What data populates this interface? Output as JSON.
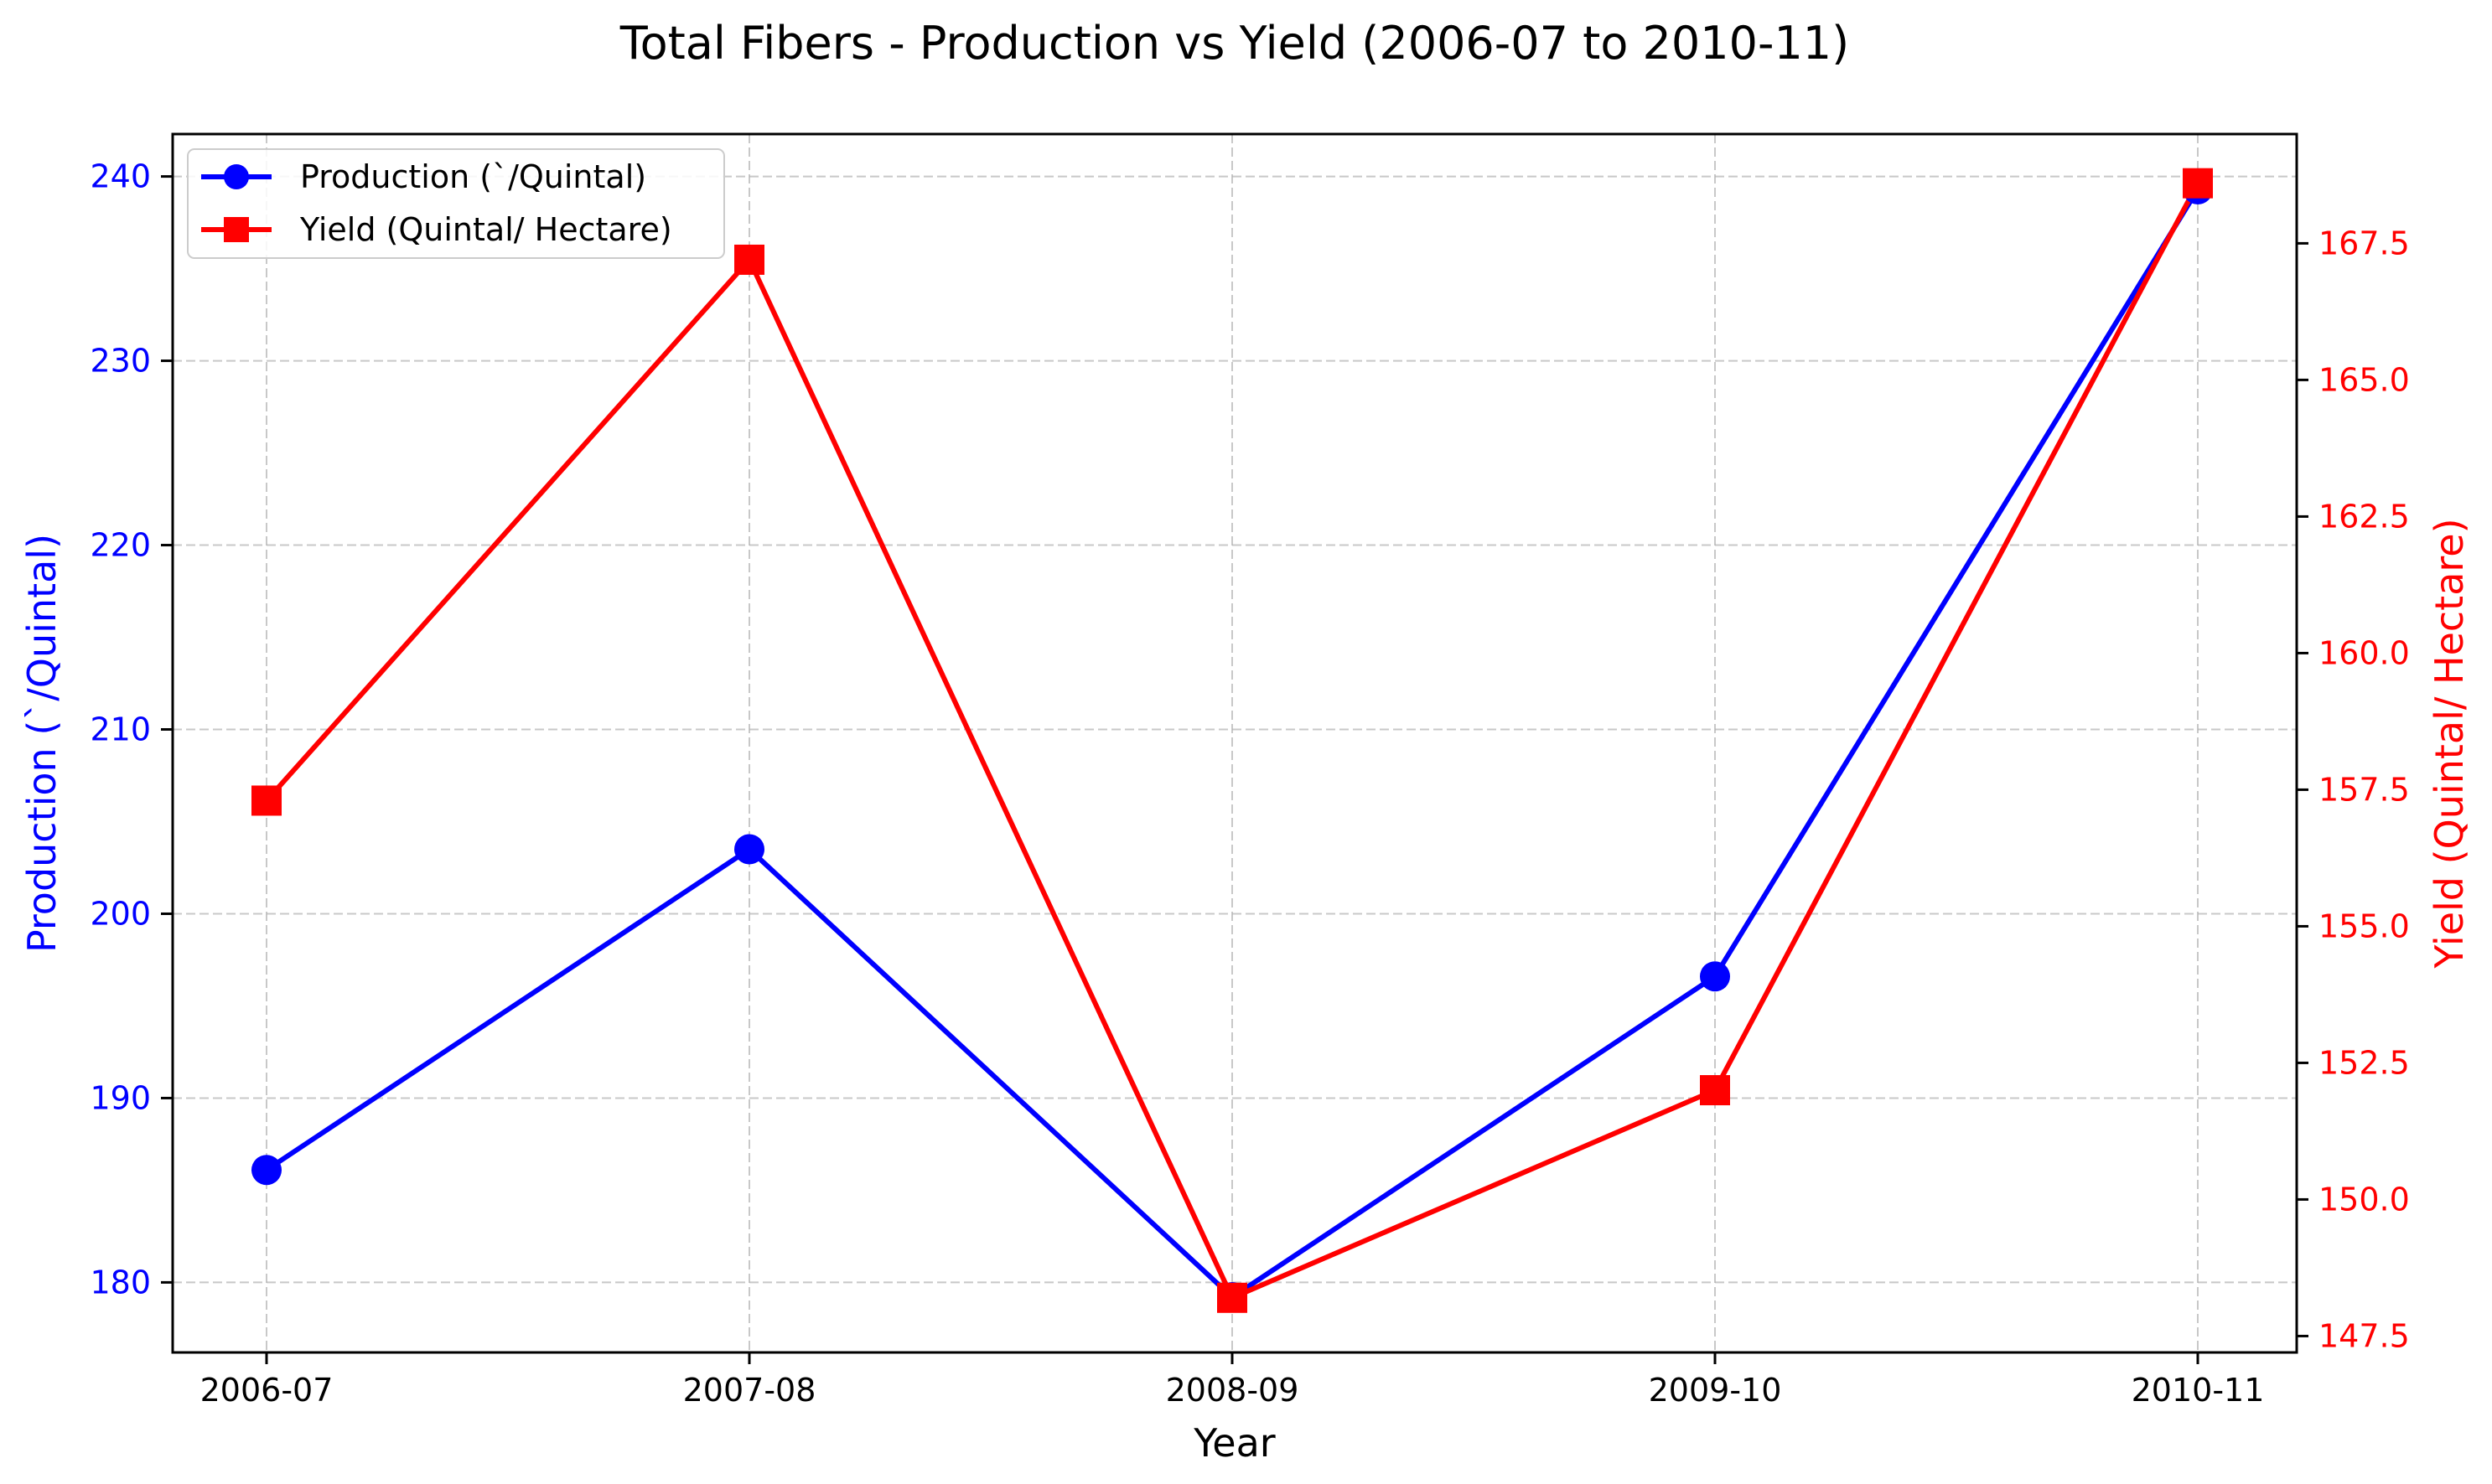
{
  "chart_data": {
    "type": "line",
    "title": "Total Fibers - Production vs Yield (2006-07 to 2010-11)",
    "xlabel": "Year",
    "categories": [
      "2006-07",
      "2007-08",
      "2008-09",
      "2009-10",
      "2010-11"
    ],
    "y_left": {
      "label": "Production (`/Quintal)",
      "range": [
        176.2,
        242.3
      ],
      "ticks": [
        180,
        190,
        200,
        210,
        220,
        230,
        240
      ],
      "tick_labels": [
        "180",
        "190",
        "200",
        "210",
        "220",
        "230",
        "240"
      ],
      "color": "#0000ff"
    },
    "y_right": {
      "label": "Yield (Quintal/ Hectare)",
      "range": [
        147.2,
        169.5
      ],
      "ticks": [
        147.5,
        150.0,
        152.5,
        155.0,
        157.5,
        160.0,
        162.5,
        165.0,
        167.5
      ],
      "tick_labels": [
        "147.5",
        "150.0",
        "152.5",
        "155.0",
        "157.5",
        "160.0",
        "162.5",
        "165.0",
        "167.5"
      ],
      "color": "#ff0000"
    },
    "series": [
      {
        "name": "Production (`/Quintal)",
        "axis": "left",
        "marker": "circle",
        "color": "#0000ff",
        "values": [
          186.1,
          203.5,
          179.2,
          196.6,
          239.3
        ]
      },
      {
        "name": "Yield (Quintal/ Hectare)",
        "axis": "right",
        "marker": "square",
        "color": "#ff0000",
        "values": [
          157.3,
          167.2,
          148.2,
          152.0,
          168.6
        ]
      }
    ],
    "grid": true,
    "legend_position": "top-left"
  }
}
